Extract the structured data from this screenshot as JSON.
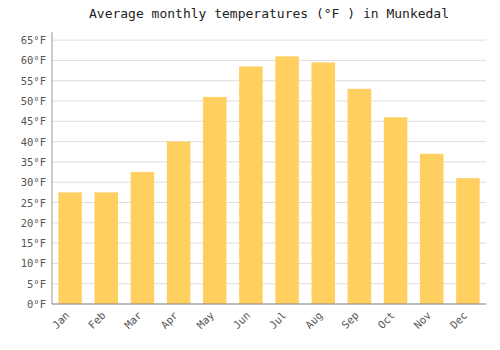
{
  "chart_data": {
    "type": "bar",
    "title": "Average monthly temperatures (°F ) in Munkedal",
    "categories": [
      "Jan",
      "Feb",
      "Mar",
      "Apr",
      "May",
      "Jun",
      "Jul",
      "Aug",
      "Sep",
      "Oct",
      "Nov",
      "Dec"
    ],
    "values": [
      27.5,
      27.5,
      32.5,
      40.0,
      51.0,
      58.5,
      61.0,
      59.5,
      53.0,
      46.0,
      37.0,
      31.0
    ],
    "color": "#FFD060",
    "ylim": [
      0,
      67
    ],
    "yticks": [
      {
        "value": 0,
        "label": "0°F"
      },
      {
        "value": 5,
        "label": "5°F"
      },
      {
        "value": 10,
        "label": "10°F"
      },
      {
        "value": 15,
        "label": "15°F"
      },
      {
        "value": 20,
        "label": "20°F"
      },
      {
        "value": 25,
        "label": "25°F"
      },
      {
        "value": 30,
        "label": "30°F"
      },
      {
        "value": 35,
        "label": "35°F"
      },
      {
        "value": 40,
        "label": "40°F"
      },
      {
        "value": 45,
        "label": "45°F"
      },
      {
        "value": 50,
        "label": "50°F"
      },
      {
        "value": 55,
        "label": "55°F"
      },
      {
        "value": 60,
        "label": "60°F"
      },
      {
        "value": 65,
        "label": "65°F"
      }
    ],
    "grid": true
  }
}
